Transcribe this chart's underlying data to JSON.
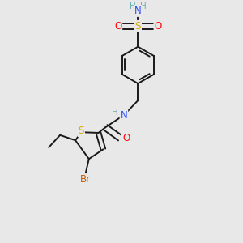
{
  "bg_color": "#e8e8e8",
  "bond_color": "#1a1a1a",
  "bond_width": 1.4,
  "atom_colors": {
    "C": "#1a1a1a",
    "H": "#6aafb2",
    "N": "#3050f8",
    "O": "#ff0d0d",
    "S_sulfonamide": "#d4aa00",
    "S_thiophene": "#d4aa00",
    "Br": "#c45a00"
  },
  "font_size": 8.5,
  "figsize": [
    3.0,
    3.0
  ],
  "dpi": 100,
  "xlim": [
    0,
    10
  ],
  "ylim": [
    0,
    10
  ]
}
